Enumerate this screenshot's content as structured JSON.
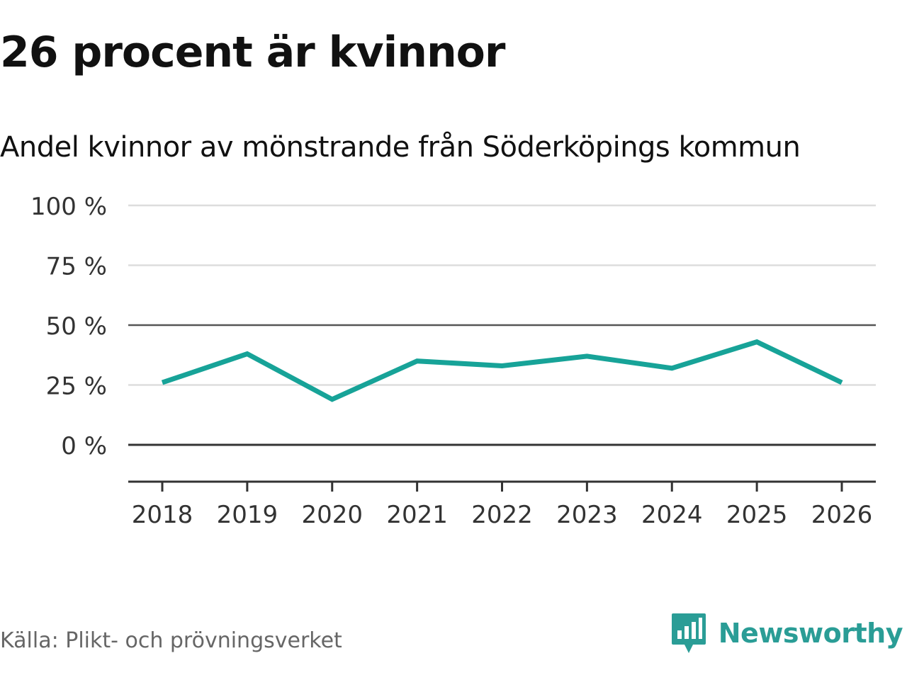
{
  "header": {
    "title": "26 procent är kvinnor",
    "subtitle": "Andel kvinnor av mönstrande från Söderköpings kommun"
  },
  "footer": {
    "source": "Källa: Plikt- och prövningsverket",
    "brand": "Newsworthy",
    "brand_icon": "bar-chart-speech-bubble-icon"
  },
  "colors": {
    "line": "#17a398",
    "brand": "#2a9d96",
    "grid": "#dddddd",
    "reference": "#555555",
    "axis": "#333333"
  },
  "chart_data": {
    "type": "line",
    "title": "",
    "xlabel": "",
    "ylabel": "",
    "categories": [
      "2018",
      "2019",
      "2020",
      "2021",
      "2022",
      "2023",
      "2024",
      "2025",
      "2026"
    ],
    "series": [
      {
        "values": [
          26,
          38,
          19,
          35,
          33,
          37,
          32,
          43,
          26
        ]
      }
    ],
    "ylim": [
      -15,
      100
    ],
    "yticks": [
      0,
      25,
      50,
      75,
      100
    ],
    "ytick_labels": [
      "0 %",
      "25 %",
      "50 %",
      "75 %",
      "100 %"
    ],
    "grid": true,
    "legend": "none"
  }
}
